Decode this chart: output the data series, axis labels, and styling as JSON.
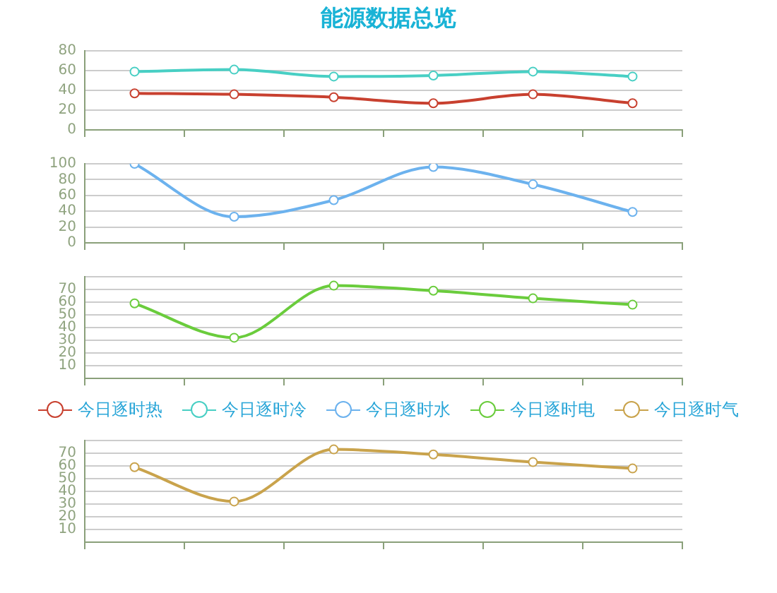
{
  "chart_data": [
    {
      "type": "line",
      "title": "能源数据总览",
      "categories": [
        null,
        null,
        null,
        null,
        null,
        null
      ],
      "series": [
        {
          "name": "今日逐时热",
          "color": "#c8402f",
          "values": [
            37,
            36,
            33,
            27,
            36,
            27
          ]
        },
        {
          "name": "今日逐时冷",
          "color": "#48cfc4",
          "values": [
            59,
            61,
            54,
            55,
            59,
            54
          ]
        }
      ],
      "ylim": [
        0,
        80
      ],
      "yticks": [
        0,
        20,
        40,
        60,
        80
      ],
      "grid": "y",
      "marker": "circle",
      "tick_labels": "y"
    },
    {
      "type": "line",
      "categories": [
        null,
        null,
        null,
        null,
        null,
        null
      ],
      "series": [
        {
          "name": "今日逐时水",
          "color": "#6cb2ee",
          "values": [
            100,
            33,
            54,
            96,
            74,
            39
          ]
        }
      ],
      "ylim": [
        0,
        100
      ],
      "yticks": [
        0,
        20,
        40,
        60,
        80,
        100
      ],
      "grid": "y",
      "marker": "circle",
      "tick_labels": "y"
    },
    {
      "type": "line",
      "categories": [
        null,
        null,
        null,
        null,
        null,
        null
      ],
      "series": [
        {
          "name": "今日逐时电",
          "color": "#6acc3c",
          "values": [
            59,
            32,
            73,
            69,
            63,
            58
          ]
        }
      ],
      "ylim": [
        0,
        80
      ],
      "yticks": [
        10,
        20,
        30,
        40,
        50,
        60,
        70,
        {
          "value": 80,
          "label": null
        }
      ],
      "grid": "y",
      "marker": "circle",
      "tick_labels": "y",
      "legend": "bottom"
    },
    {
      "type": "line",
      "categories": [
        null,
        null,
        null,
        null,
        null,
        null
      ],
      "series": [
        {
          "name": "今日逐时气",
          "color": "#c9a34c",
          "values": [
            59,
            32,
            73,
            69,
            63,
            58
          ]
        }
      ],
      "ylim": [
        0,
        80
      ],
      "yticks": [
        10,
        20,
        30,
        40,
        50,
        60,
        70,
        {
          "value": 80,
          "label": null
        }
      ],
      "grid": "y",
      "marker": "circle",
      "tick_labels": "y"
    }
  ]
}
